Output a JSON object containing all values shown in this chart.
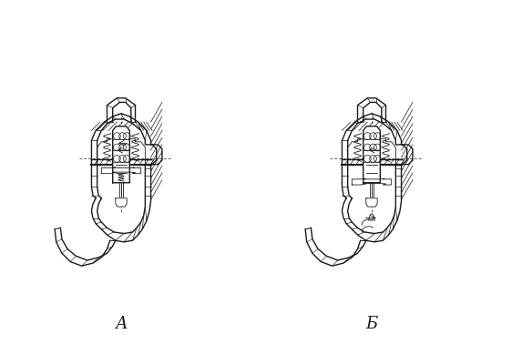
{
  "background_color": "#ffffff",
  "label_A": "А",
  "label_B": "Б",
  "label_fontsize": 13,
  "fig_width": 5.73,
  "fig_height": 3.78,
  "dpi": 100,
  "line_color": "#1a1a1a",
  "lw_thin": 0.6,
  "lw_med": 1.0,
  "lw_thick": 1.5,
  "diagram_A": {
    "ox": 133,
    "oy": 185,
    "scale": 155
  },
  "diagram_B": {
    "ox": 408,
    "oy": 185,
    "scale": 155
  }
}
